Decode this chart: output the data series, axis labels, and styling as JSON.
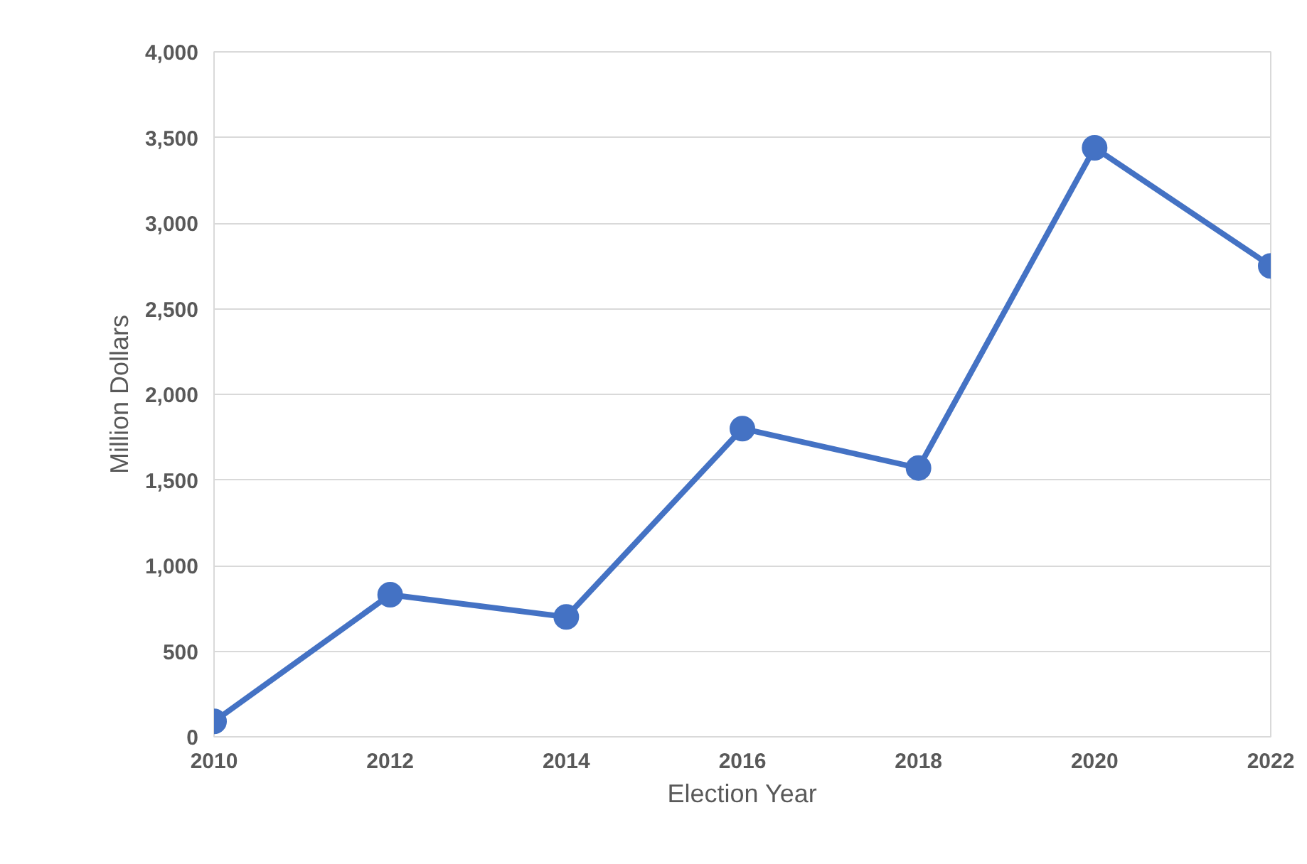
{
  "chart_data": {
    "type": "line",
    "xlabel": "Election Year",
    "ylabel": "Million Dollars",
    "x": [
      2010,
      2012,
      2014,
      2016,
      2018,
      2020,
      2022
    ],
    "series": [
      {
        "color": "#4472c4",
        "values": [
          90,
          830,
          700,
          1800,
          1570,
          3440,
          2750
        ]
      }
    ],
    "xlim": [
      2010,
      2022
    ],
    "xticks": [
      2010,
      2012,
      2014,
      2016,
      2018,
      2020,
      2022
    ],
    "ylim": [
      0,
      4000
    ],
    "yticks": [
      {
        "value": 0,
        "label": "0"
      },
      {
        "value": 500,
        "label": "500"
      },
      {
        "value": 1000,
        "label": "1,000"
      },
      {
        "value": 1500,
        "label": "1,500"
      },
      {
        "value": 2000,
        "label": "2,000"
      },
      {
        "value": 2500,
        "label": "2,500"
      },
      {
        "value": 3000,
        "label": "3,000"
      },
      {
        "value": 3500,
        "label": "3,500"
      },
      {
        "value": 4000,
        "label": "4,000"
      }
    ],
    "grid": "y",
    "marker": "circle",
    "line_style": "solid"
  }
}
